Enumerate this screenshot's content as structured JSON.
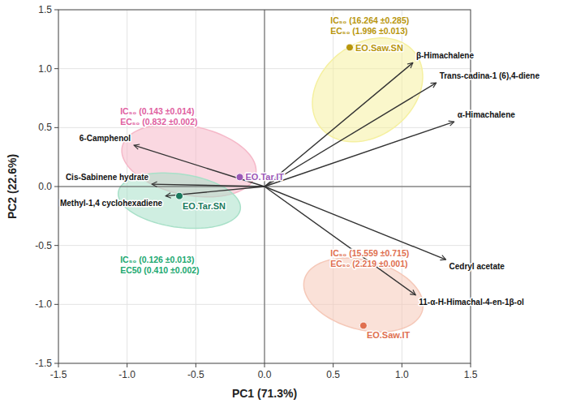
{
  "chart_data": {
    "type": "scatter",
    "xlabel": "PC1 (71.3%)",
    "ylabel": "PC2 (22.6%)",
    "xlim": [
      -1.5,
      1.5
    ],
    "ylim": [
      -1.5,
      1.5
    ],
    "xticks": [
      -1.5,
      {
        "value": -1.0,
        "label": "-1.0"
      },
      -0.5,
      {
        "value": 0.0,
        "label": "0.0"
      },
      0.5,
      {
        "value": 1.0,
        "label": "1.0"
      },
      1.5
    ],
    "yticks": [
      -1.5,
      {
        "value": -1.0,
        "label": "-1.0"
      },
      -0.5,
      {
        "value": 0.0,
        "label": "0.0"
      },
      0.5,
      {
        "value": 1.0,
        "label": "1.0"
      },
      1.5
    ],
    "grid": true,
    "points": [
      {
        "name": "EO.Saw.SN",
        "x": 0.62,
        "y": 1.18,
        "color": "#b8960c"
      },
      {
        "name": "EO.Tar.IT",
        "x": -0.18,
        "y": 0.08,
        "color": "#9b59b6"
      },
      {
        "name": "EO.Tar.SN",
        "x": -0.62,
        "y": -0.08,
        "color": "#1a7a5e"
      },
      {
        "name": "EO.Saw.IT",
        "x": 0.72,
        "y": -1.18,
        "color": "#e07050"
      }
    ],
    "loadings": [
      {
        "name": "β-Himachalene",
        "x": 1.08,
        "y": 1.05
      },
      {
        "name": "Trans-cadina-1 (6),4-diene",
        "x": 1.25,
        "y": 0.88
      },
      {
        "name": "α-Himachalene",
        "x": 1.38,
        "y": 0.55
      },
      {
        "name": "Cedryl acetate",
        "x": 1.32,
        "y": -0.62
      },
      {
        "name": "11-α-H-Himachal-4-en-1β-ol",
        "x": 1.1,
        "y": -0.92
      },
      {
        "name": "Cis-Sabinene hydrate",
        "x": -0.82,
        "y": 0.02
      },
      {
        "name": "Methyl-1,4 cyclohexadiene",
        "x": -0.72,
        "y": -0.08
      },
      {
        "name": "6-Camphenol",
        "x": -0.95,
        "y": 0.35
      }
    ],
    "ellipses": [
      {
        "cx": 0.75,
        "cy": 0.82,
        "width": 0.72,
        "height": 0.95,
        "angle": -35,
        "color": "#f5f0a0"
      },
      {
        "cx": -0.55,
        "cy": 0.22,
        "width": 1.0,
        "height": 0.58,
        "angle": -15,
        "color": "#f5b8c8"
      },
      {
        "cx": -0.62,
        "cy": -0.12,
        "width": 0.9,
        "height": 0.45,
        "angle": -10,
        "color": "#a8e0c8"
      },
      {
        "cx": 0.72,
        "cy": -0.92,
        "width": 0.9,
        "height": 0.58,
        "angle": -20,
        "color": "#f5c8b8"
      }
    ],
    "annotations": [
      {
        "lines": [
          "IC₅₀ (0.143  ±0.014)",
          "EC₅₀ (0.832 ±0.002)"
        ],
        "x": -1.05,
        "y": 0.68,
        "color": "#e060a0"
      },
      {
        "lines": [
          "IC₅₀ (0.126  ±0.013)",
          "EC50 (0.410 ±0.002)"
        ],
        "x": -1.05,
        "y": -0.58,
        "color": "#20a870"
      },
      {
        "lines": [
          "IC₅₀ (16.264 ±0.285)",
          "EC₅₀ (1.996 ±0.013)"
        ],
        "x": 0.48,
        "y": 1.45,
        "color": "#b8960c"
      },
      {
        "lines": [
          "IC₅₀ (15.559 ±0.715)",
          "EC₅₀ (2.219 ±0.001)"
        ],
        "x": 0.48,
        "y": -0.52,
        "color": "#e07050"
      }
    ]
  }
}
